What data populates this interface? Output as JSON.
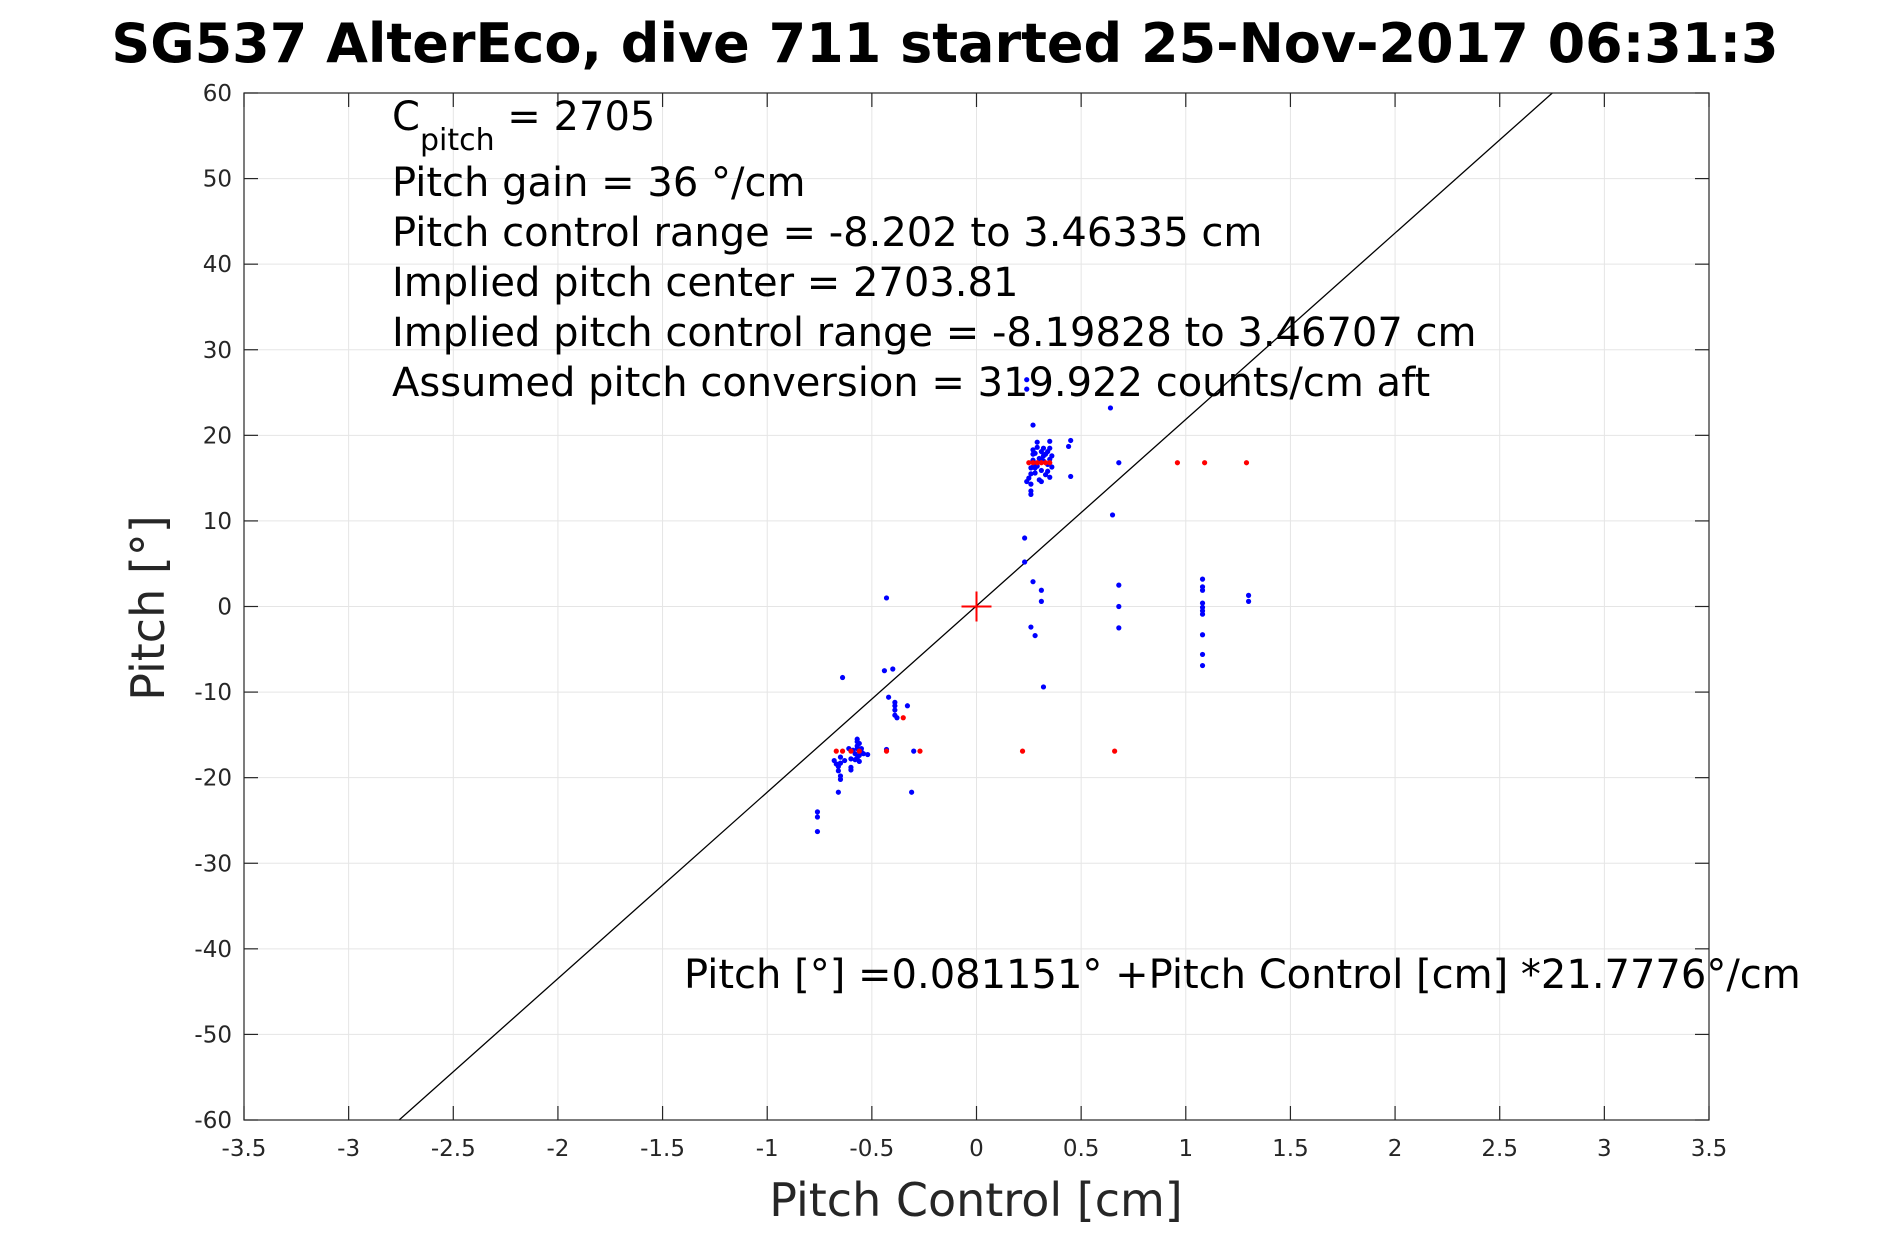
{
  "chart_data": {
    "type": "scatter",
    "title": "SG537 AlterEco, dive 711 started 25-Nov-2017 06:31:3",
    "xlabel": "Pitch Control [cm]",
    "ylabel": "Pitch [°]",
    "xlim": [
      -3.5,
      3.5
    ],
    "ylim": [
      -60,
      60
    ],
    "xticks": [
      -3.5,
      -3,
      -2.5,
      -2,
      -1.5,
      -1,
      -0.5,
      0,
      0.5,
      1,
      1.5,
      2,
      2.5,
      3,
      3.5
    ],
    "xtick_labels": [
      "-3.5",
      "-3",
      "-2.5",
      "-2",
      "-1.5",
      "-1",
      "-0.5",
      "0",
      "0.5",
      "1",
      "1.5",
      "2",
      "2.5",
      "3",
      "3.5"
    ],
    "yticks": [
      60,
      50,
      40,
      30,
      20,
      10,
      0,
      -10,
      -20,
      -30,
      -40,
      -50,
      -60
    ],
    "ytick_labels": [
      "60",
      "50",
      "40",
      "30",
      "20",
      "10",
      "0",
      "-10",
      "-20",
      "-30",
      "-40",
      "-50",
      "-60"
    ],
    "grid": true,
    "legend": "none",
    "colors": {
      "measured": "#0000ff",
      "rejected": "#ff0000",
      "fit": "#000000",
      "center_marker": "#ff0000"
    },
    "annotations": {
      "cpitch_main": "C",
      "cpitch_sub": "pitch",
      "cpitch_value": " = 2705",
      "pitch_gain": "Pitch gain = 36 °/cm",
      "control_range": "Pitch control range = -8.202 to 3.46335 cm",
      "implied_center": "Implied pitch center = 2703.81",
      "implied_range": "Implied pitch control range = -8.19828 to 3.46707 cm",
      "conversion": "Assumed pitch conversion = 319.922 counts/cm aft",
      "fit_equation": "Pitch [°] =0.081151° +Pitch Control [cm] *21.7776°/cm"
    },
    "fit": {
      "intercept": 0.081151,
      "slope": 21.7776
    },
    "center_marker": {
      "x": 0,
      "y": 0
    },
    "series": [
      {
        "marker": "point",
        "x": [
          -0.76,
          -0.76,
          -0.76,
          -0.68,
          -0.67,
          -0.66,
          -0.66,
          -0.65,
          -0.65,
          -0.65,
          -0.66,
          -0.64,
          -0.63,
          -0.65,
          -0.6,
          -0.6,
          -0.59,
          -0.58,
          -0.58,
          -0.57,
          -0.57,
          -0.57,
          -0.57,
          -0.57,
          -0.56,
          -0.56,
          -0.56,
          -0.55,
          -0.55,
          -0.54,
          -0.52,
          -0.6,
          -0.61,
          -0.43,
          -0.44,
          -0.4,
          -0.42,
          -0.39,
          -0.39,
          -0.39,
          -0.39,
          -0.38,
          -0.33,
          -0.31,
          -0.3,
          -0.43,
          0.23,
          0.23,
          0.24,
          0.25,
          0.26,
          0.26,
          0.26,
          0.26,
          0.26,
          0.27,
          0.27,
          0.27,
          0.27,
          0.27,
          0.28,
          0.28,
          0.28,
          0.28,
          0.29,
          0.29,
          0.29,
          0.3,
          0.3,
          0.31,
          0.31,
          0.31,
          0.31,
          0.32,
          0.32,
          0.32,
          0.33,
          0.33,
          0.34,
          0.34,
          0.34,
          0.35,
          0.35,
          0.35,
          0.35,
          0.36,
          0.36,
          0.44,
          0.45,
          0.45,
          0.27,
          0.31,
          0.31,
          0.26,
          0.28,
          0.32,
          0.64,
          0.65,
          0.68,
          0.68,
          0.68,
          0.68,
          1.08,
          1.08,
          1.08,
          1.08,
          1.08,
          1.08,
          1.08,
          1.08,
          1.08,
          1.08,
          1.3,
          1.3,
          0.24,
          0.24
        ],
        "y": [
          -24,
          -24.6,
          -26.3,
          -18,
          -18.4,
          -18.7,
          -19.2,
          -19.8,
          -20.2,
          -18.3,
          -21.7,
          -8.3,
          -18,
          -17.6,
          -18.8,
          -19.1,
          -16.8,
          -17.2,
          -17.9,
          -15.5,
          -15.8,
          -16.3,
          -16.6,
          -17.7,
          -16,
          -17.4,
          -18.1,
          -16.6,
          -17,
          -17.2,
          -17.3,
          -17.8,
          -16.6,
          1,
          -7.5,
          -7.3,
          -10.6,
          -11.2,
          -11.6,
          -12.1,
          -12.7,
          -13,
          -11.6,
          -21.7,
          -16.9,
          -16.7,
          5.2,
          8,
          14.6,
          15,
          13.1,
          13.5,
          14.3,
          15.5,
          16.2,
          16.3,
          17.1,
          17.8,
          18.3,
          21.2,
          15.6,
          16.2,
          16.7,
          17.9,
          18.6,
          19.2,
          16.4,
          14.8,
          17.3,
          14.6,
          15.9,
          17.1,
          18.1,
          17,
          17.6,
          18.5,
          15.4,
          17.8,
          15.8,
          16.6,
          18.1,
          15.1,
          17.2,
          18.5,
          19.3,
          16.3,
          17.6,
          18.7,
          19.4,
          15.2,
          2.9,
          1.9,
          0.6,
          -2.4,
          -3.4,
          -9.4,
          23.2,
          10.7,
          2.5,
          0,
          -2.5,
          16.8,
          3.2,
          2.3,
          1.9,
          0.4,
          -0.1,
          -0.5,
          -0.9,
          -3.3,
          -5.6,
          -6.9,
          1.3,
          0.6,
          25.4,
          26.5
        ]
      },
      {
        "marker": "point",
        "x": [
          -0.67,
          -0.64,
          -0.6,
          -0.56,
          -0.43,
          -0.35,
          -0.27,
          0.22,
          0.25,
          0.27,
          0.29,
          0.31,
          0.33,
          0.35,
          0.66,
          0.96,
          1.09,
          1.29
        ],
        "y": [
          -16.9,
          -16.9,
          -16.9,
          -16.9,
          -16.9,
          -13,
          -16.9,
          -16.9,
          16.8,
          16.8,
          16.8,
          16.8,
          16.8,
          16.8,
          -16.9,
          16.8,
          16.8,
          16.8
        ]
      }
    ]
  }
}
